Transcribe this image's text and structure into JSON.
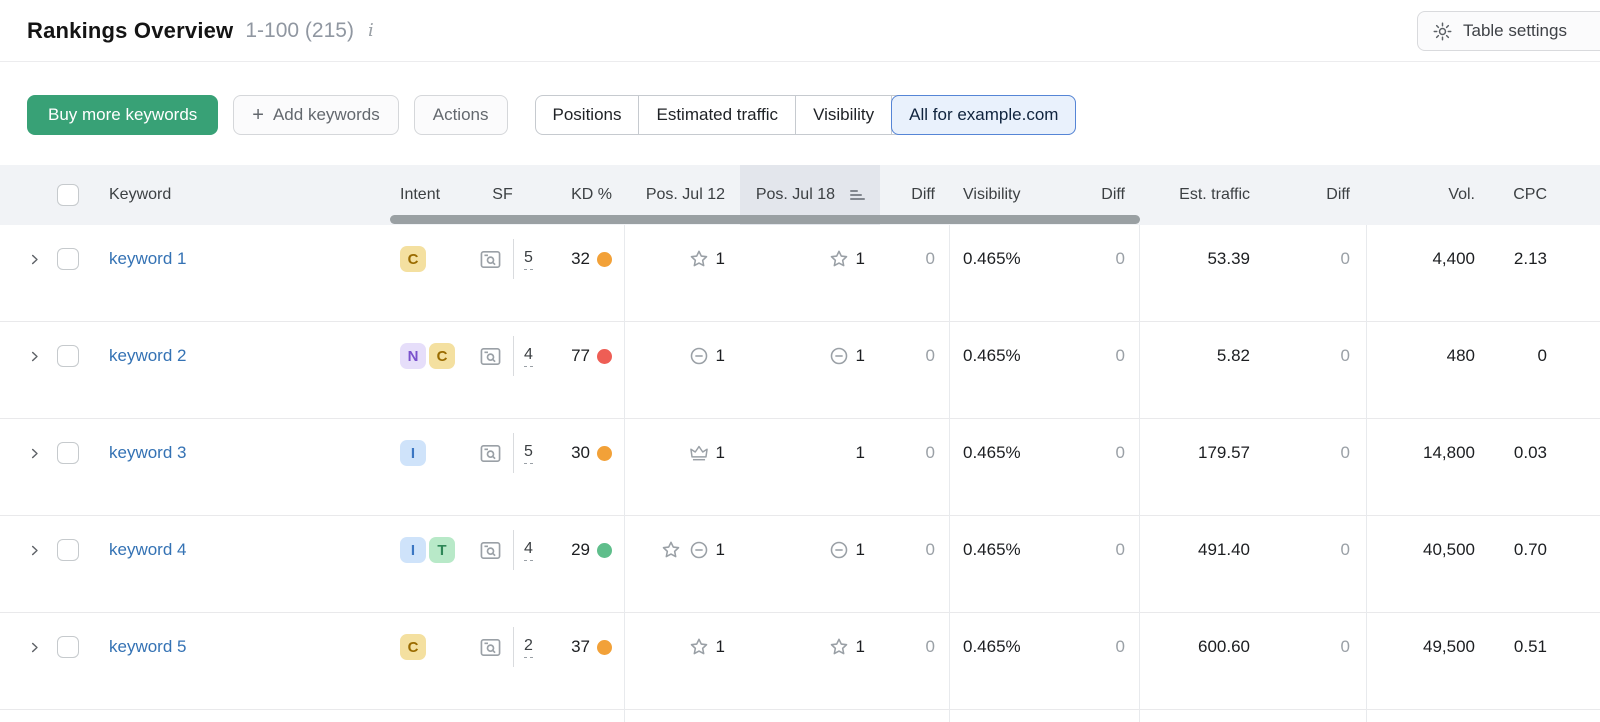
{
  "header": {
    "title": "Rankings Overview",
    "range": "1-100 (215)",
    "table_settings_label": "Table settings"
  },
  "toolbar": {
    "buy_button": "Buy more keywords",
    "add_button": "Add keywords",
    "actions_button": "Actions",
    "tabs": [
      {
        "label": "Positions",
        "active": false
      },
      {
        "label": "Estimated traffic",
        "active": false
      },
      {
        "label": "Visibility",
        "active": false
      },
      {
        "label": "All for example.com",
        "active": true
      }
    ]
  },
  "colors": {
    "accent_green": "#38a176",
    "link_blue": "#3472b4",
    "active_tab_border": "#5585d6",
    "kd_levels": {
      "easy": "#5fbe8b",
      "medium": "#f2a138",
      "hard": "#ee5e55"
    }
  },
  "intent_types": {
    "C": {
      "name": "commercial",
      "bg": "#f4e0a0",
      "fg": "#9a6b00"
    },
    "N": {
      "name": "navigational",
      "bg": "#e6defa",
      "fg": "#7a52cc"
    },
    "I": {
      "name": "informational",
      "bg": "#cfe3fa",
      "fg": "#3b76c2"
    },
    "T": {
      "name": "transactional",
      "bg": "#b8e9c8",
      "fg": "#2e8757"
    }
  },
  "table": {
    "headers": [
      "Keyword",
      "Intent",
      "SF",
      "KD %",
      "Pos. Jul 12",
      "Pos. Jul 18",
      "Diff",
      "Visibility",
      "Diff",
      "Est. traffic",
      "Diff",
      "Vol.",
      "CPC"
    ],
    "sorted_column": "Pos. Jul 18",
    "rows": [
      {
        "keyword": "keyword 1",
        "intents": [
          "C"
        ],
        "sf_count": "5",
        "kd": "32",
        "kd_level": "medium",
        "pos_jul12": {
          "icons": [
            "star"
          ],
          "value": "1"
        },
        "pos_jul18": {
          "icons": [
            "star"
          ],
          "value": "1"
        },
        "pos_diff": "0",
        "visibility": "0.465%",
        "visibility_diff": "0",
        "est_traffic": "53.39",
        "traffic_diff": "0",
        "volume": "4,400",
        "cpc": "2.13"
      },
      {
        "keyword": "keyword 2",
        "intents": [
          "N",
          "C"
        ],
        "sf_count": "4",
        "kd": "77",
        "kd_level": "hard",
        "pos_jul12": {
          "icons": [
            "link"
          ],
          "value": "1"
        },
        "pos_jul18": {
          "icons": [
            "link"
          ],
          "value": "1"
        },
        "pos_diff": "0",
        "visibility": "0.465%",
        "visibility_diff": "0",
        "est_traffic": "5.82",
        "traffic_diff": "0",
        "volume": "480",
        "cpc": "0"
      },
      {
        "keyword": "keyword 3",
        "intents": [
          "I"
        ],
        "sf_count": "5",
        "kd": "30",
        "kd_level": "medium",
        "pos_jul12": {
          "icons": [
            "crown"
          ],
          "value": "1"
        },
        "pos_jul18": {
          "icons": [],
          "value": "1"
        },
        "pos_diff": "0",
        "visibility": "0.465%",
        "visibility_diff": "0",
        "est_traffic": "179.57",
        "traffic_diff": "0",
        "volume": "14,800",
        "cpc": "0.03"
      },
      {
        "keyword": "keyword 4",
        "intents": [
          "I",
          "T"
        ],
        "sf_count": "4",
        "kd": "29",
        "kd_level": "easy",
        "pos_jul12": {
          "icons": [
            "star",
            "link"
          ],
          "value": "1"
        },
        "pos_jul18": {
          "icons": [
            "link"
          ],
          "value": "1"
        },
        "pos_diff": "0",
        "visibility": "0.465%",
        "visibility_diff": "0",
        "est_traffic": "491.40",
        "traffic_diff": "0",
        "volume": "40,500",
        "cpc": "0.70"
      },
      {
        "keyword": "keyword 5",
        "intents": [
          "C"
        ],
        "sf_count": "2",
        "kd": "37",
        "kd_level": "medium",
        "pos_jul12": {
          "icons": [
            "star"
          ],
          "value": "1"
        },
        "pos_jul18": {
          "icons": [
            "star"
          ],
          "value": "1"
        },
        "pos_diff": "0",
        "visibility": "0.465%",
        "visibility_diff": "0",
        "est_traffic": "600.60",
        "traffic_diff": "0",
        "volume": "49,500",
        "cpc": "0.51"
      }
    ]
  }
}
